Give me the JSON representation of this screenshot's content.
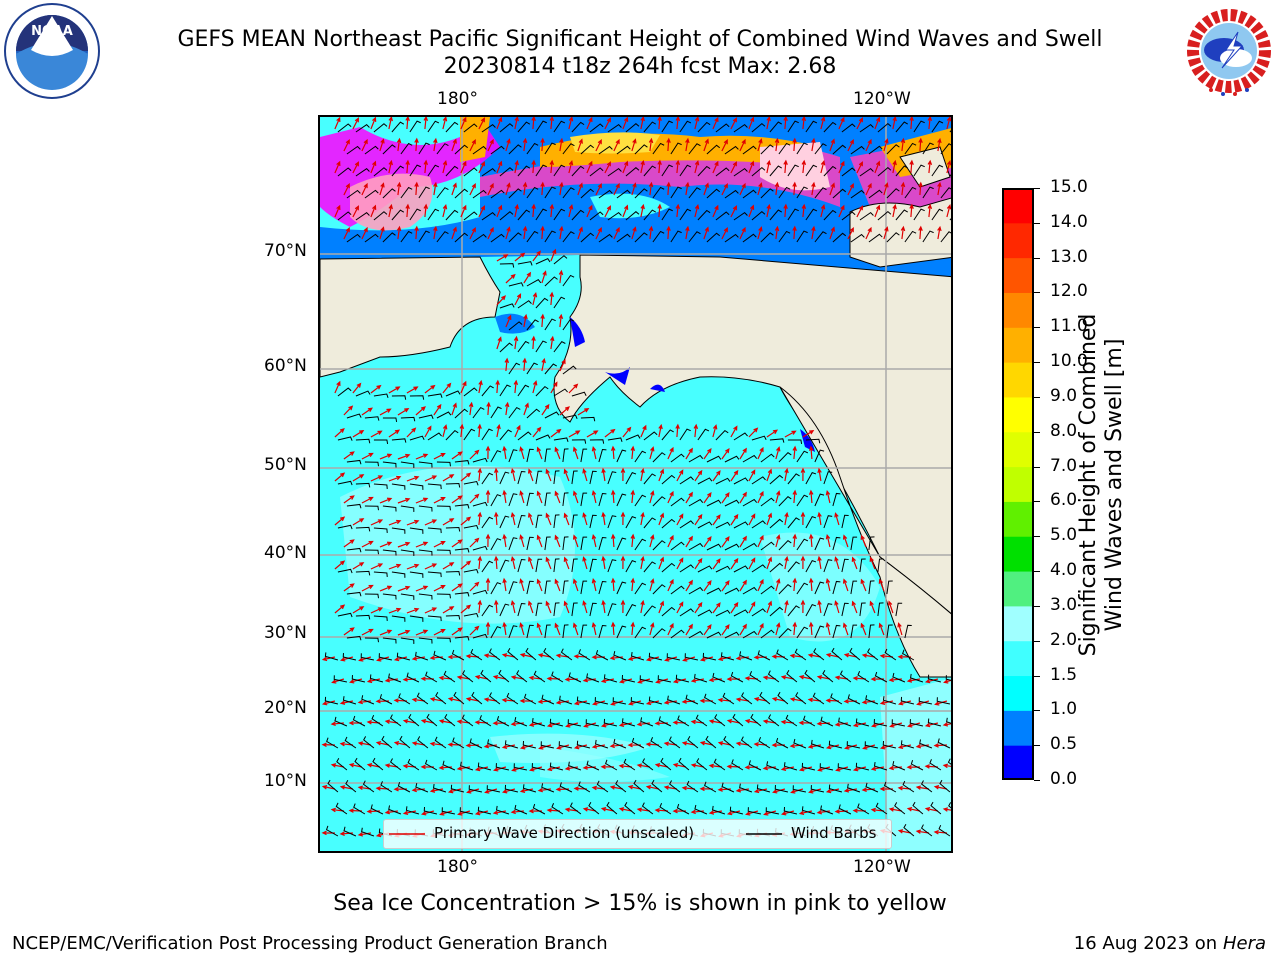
{
  "title": {
    "line1": "GEFS MEAN Northeast Pacific Significant Height of Combined Wind Waves and Swell",
    "line2": "20230814 t18z 264h fcst   Max: 2.68"
  },
  "logos": {
    "left": {
      "icon": "noaa-logo-icon",
      "text": "NOAA"
    },
    "right": {
      "icon": "nws-logo-icon",
      "text": "NATIONAL WEATHER SERVICE"
    }
  },
  "map": {
    "lon_labels_top": [
      "180°",
      "120°W"
    ],
    "lon_labels_bottom": [
      "180°",
      "120°W"
    ],
    "lat_labels": [
      "70°N",
      "60°N",
      "50°N",
      "40°N",
      "30°N",
      "20°N",
      "10°N"
    ],
    "land_color": "#EFECDC",
    "ocean_color": "#48FFFF",
    "legend": {
      "wave_direction": "Primary Wave Direction (unscaled)",
      "wind_barbs": "Wind Barbs",
      "wave_color": "#E00000",
      "barb_color": "#000000"
    }
  },
  "colorbar": {
    "title_line1": "Significant Height of Combined",
    "title_line2": "Wind Waves and Swell [m]",
    "ticks": [
      "0.0",
      "0.5",
      "1.0",
      "1.5",
      "2.0",
      "3.0",
      "4.0",
      "5.0",
      "6.0",
      "7.0",
      "8.0",
      "9.0",
      "10.0",
      "11.0",
      "12.0",
      "13.0",
      "14.0",
      "15.0"
    ],
    "colors": [
      "#0000FF",
      "#0080FF",
      "#00FFFF",
      "#40FFFF",
      "#A0FFFF",
      "#50F080",
      "#00E000",
      "#60F000",
      "#C0FF00",
      "#E0FF00",
      "#FFFF00",
      "#FFD700",
      "#FFB000",
      "#FF8800",
      "#FF5500",
      "#FF2800",
      "#FF0000"
    ]
  },
  "note": "Sea Ice Concentration > 15% is shown in pink to yellow",
  "footer": {
    "left": "NCEP/EMC/Verification Post Processing Product Generation Branch",
    "right_date": "16 Aug 2023 on",
    "right_host": "Hera"
  }
}
